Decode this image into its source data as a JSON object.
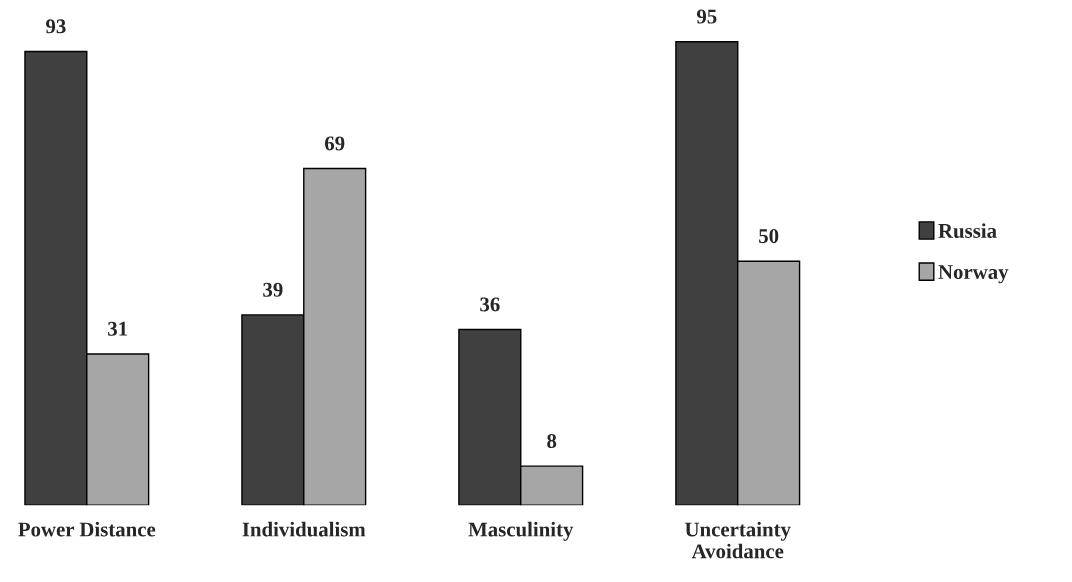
{
  "chart_data": {
    "type": "bar",
    "categories": [
      "Power Distance",
      "Individualism",
      "Masculinity",
      "Uncertainty Avoidance"
    ],
    "series": [
      {
        "name": "Russia",
        "color": "#404040",
        "values": [
          93,
          39,
          36,
          95
        ]
      },
      {
        "name": "Norway",
        "color": "#a6a6a6",
        "values": [
          31,
          69,
          8,
          50
        ]
      }
    ],
    "data_labels": true,
    "legend": "right",
    "grid": false
  }
}
